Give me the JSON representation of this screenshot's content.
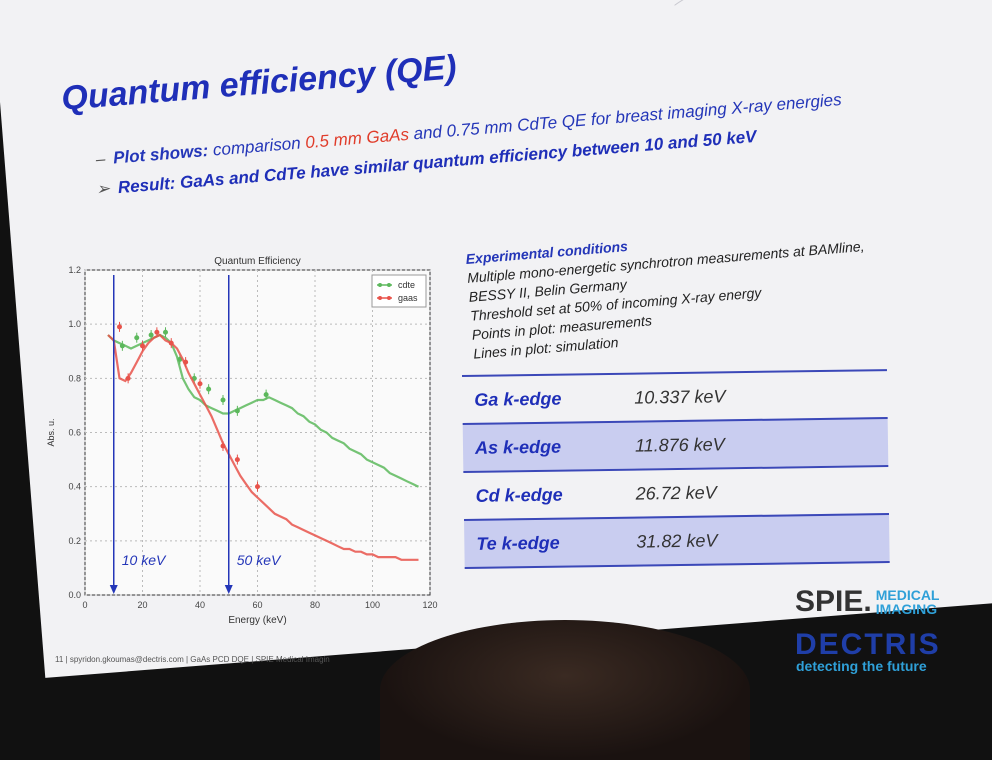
{
  "slide": {
    "title": "Quantum efficiency (QE)",
    "bullet1": {
      "marker": "–",
      "lead": "Plot shows:",
      "text_a": " comparison ",
      "gaas": "0.5 mm GaAs",
      "text_b": " and ",
      "cdte": "0.75 mm CdTe",
      "text_c": " QE for breast imaging X-ray energies"
    },
    "bullet2": {
      "marker": "➢",
      "text": "Result: GaAs and CdTe have similar quantum efficiency between 10 and 50 keV"
    },
    "conditions": {
      "heading": "Experimental conditions",
      "lines": [
        "Multiple mono-energetic synchrotron measurements at BAMline,",
        "BESSY II, Belin Germany",
        "Threshold set at 50% of incoming X-ray energy",
        "Points in plot: measurements",
        "Lines in plot: simulation"
      ]
    },
    "edges": [
      {
        "name": "Ga k-edge",
        "value": "10.337 keV"
      },
      {
        "name": "As k-edge",
        "value": "11.876 keV"
      },
      {
        "name": "Cd k-edge",
        "value": "26.72 keV"
      },
      {
        "name": "Te k-edge",
        "value": "31.82 keV"
      }
    ],
    "logos": {
      "spie": "SPIE.",
      "spie_sub1": "MEDICAL",
      "spie_sub2": "IMAGING",
      "dectris": "DECTRIS",
      "dectris_tag": "detecting the future"
    },
    "footer": "11  |  spyridon.gkoumas@dectris.com  |  GaAs PCD DQE  |  SPIE Medical Imagin"
  },
  "chart_data": {
    "type": "line",
    "title": "Quantum Efficiency",
    "xlabel": "Energy (keV)",
    "ylabel": "Abs. u.",
    "xlim": [
      0,
      120
    ],
    "ylim": [
      0.0,
      1.2
    ],
    "xticks": [
      "0",
      "20",
      "40",
      "60",
      "80",
      "100",
      "120"
    ],
    "yticks": [
      "0.0",
      "0.2",
      "0.4",
      "0.6",
      "0.8",
      "1.0",
      "1.2"
    ],
    "grid": true,
    "legend": "top-right",
    "series": [
      {
        "name": "cdte",
        "color": "#5cb85c",
        "line_x": [
          8,
          10,
          12,
          14,
          16,
          18,
          20,
          22,
          24,
          26,
          28,
          30,
          32,
          34,
          36,
          38,
          40,
          42,
          44,
          46,
          48,
          50,
          52,
          54,
          56,
          58,
          60,
          62,
          64,
          66,
          68,
          70,
          72,
          74,
          76,
          78,
          80,
          82,
          84,
          86,
          88,
          90,
          92,
          94,
          96,
          98,
          100,
          102,
          104,
          106,
          108,
          110,
          112,
          114,
          116
        ],
        "line_y": [
          0.96,
          0.94,
          0.93,
          0.92,
          0.91,
          0.92,
          0.93,
          0.94,
          0.95,
          0.96,
          0.95,
          0.93,
          0.88,
          0.8,
          0.76,
          0.73,
          0.72,
          0.7,
          0.69,
          0.68,
          0.67,
          0.67,
          0.68,
          0.69,
          0.7,
          0.71,
          0.72,
          0.72,
          0.73,
          0.72,
          0.71,
          0.7,
          0.69,
          0.67,
          0.66,
          0.64,
          0.63,
          0.61,
          0.6,
          0.58,
          0.57,
          0.56,
          0.54,
          0.53,
          0.52,
          0.5,
          0.49,
          0.48,
          0.47,
          0.45,
          0.44,
          0.43,
          0.42,
          0.41,
          0.4
        ],
        "points_x": [
          13,
          18,
          23,
          28,
          33,
          38,
          43,
          48,
          53,
          63
        ],
        "points_y": [
          0.92,
          0.95,
          0.96,
          0.97,
          0.87,
          0.8,
          0.76,
          0.72,
          0.68,
          0.74
        ]
      },
      {
        "name": "gaas",
        "color": "#e8524a",
        "line_x": [
          8,
          10,
          12,
          14,
          16,
          18,
          20,
          22,
          24,
          26,
          28,
          30,
          32,
          34,
          36,
          38,
          40,
          42,
          44,
          46,
          48,
          50,
          52,
          54,
          56,
          58,
          60,
          62,
          64,
          66,
          68,
          70,
          72,
          74,
          76,
          78,
          80,
          82,
          84,
          86,
          88,
          90,
          92,
          94,
          96,
          98,
          100,
          102,
          104,
          106,
          108,
          110,
          112,
          114,
          116
        ],
        "line_y": [
          0.96,
          0.94,
          0.8,
          0.79,
          0.82,
          0.86,
          0.9,
          0.93,
          0.95,
          0.96,
          0.94,
          0.93,
          0.91,
          0.87,
          0.82,
          0.78,
          0.74,
          0.7,
          0.66,
          0.61,
          0.56,
          0.52,
          0.48,
          0.44,
          0.41,
          0.38,
          0.36,
          0.34,
          0.32,
          0.3,
          0.29,
          0.28,
          0.26,
          0.25,
          0.24,
          0.23,
          0.22,
          0.21,
          0.2,
          0.19,
          0.18,
          0.17,
          0.17,
          0.16,
          0.16,
          0.15,
          0.15,
          0.14,
          0.14,
          0.14,
          0.14,
          0.13,
          0.13,
          0.13,
          0.13
        ],
        "points_x": [
          12,
          15,
          20,
          25,
          30,
          35,
          40,
          48,
          53,
          60
        ],
        "points_y": [
          0.99,
          0.8,
          0.92,
          0.97,
          0.93,
          0.86,
          0.78,
          0.55,
          0.5,
          0.4
        ]
      }
    ],
    "annotations": [
      {
        "text": "10 keV",
        "x": 10
      },
      {
        "text": "50 keV",
        "x": 50
      }
    ]
  }
}
